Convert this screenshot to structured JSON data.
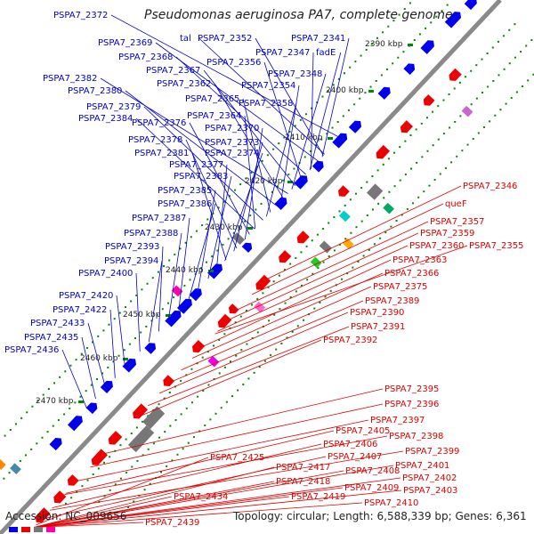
{
  "title": "Pseudomonas aeruginosa PA7, complete genome",
  "footer": {
    "accession": "Accession: NC_009656",
    "summary": "Topology: circular; Length: 6,588,339 bp; Genes: 6,361"
  },
  "colors": {
    "forward_label": "#0000cc",
    "reverse_label": "#dd0000",
    "forward_feature": "#0000ee",
    "reverse_feature": "#ee0000",
    "backbone": "#8a8a8a",
    "tick": "#008800"
  },
  "ticks": [
    {
      "text": "2390 kbp"
    },
    {
      "text": "2400 kbp"
    },
    {
      "text": "2410 kbp"
    },
    {
      "text": "2420 kbp"
    },
    {
      "text": "2430 kbp"
    },
    {
      "text": "2440 kbp"
    },
    {
      "text": "2450 kbp"
    },
    {
      "text": "2460 kbp"
    },
    {
      "text": "2470 kbp"
    }
  ],
  "forward_labels": [
    {
      "text": "PSPA7_2372"
    },
    {
      "text": "tal"
    },
    {
      "text": "PSPA7_2352"
    },
    {
      "text": "PSPA7_2341"
    },
    {
      "text": "PSPA7_2369"
    },
    {
      "text": "PSPA7_2347"
    },
    {
      "text": "fadE"
    },
    {
      "text": "PSPA7_2368"
    },
    {
      "text": "PSPA7_2356"
    },
    {
      "text": "PSPA7_2367"
    },
    {
      "text": "PSPA7_2348"
    },
    {
      "text": "PSPA7_2382"
    },
    {
      "text": "PSPA7_2362"
    },
    {
      "text": "PSPA7_2354"
    },
    {
      "text": "PSPA7_2380"
    },
    {
      "text": "PSPA7_2365"
    },
    {
      "text": "PSPA7_2358"
    },
    {
      "text": "PSPA7_2379"
    },
    {
      "text": "PSPA7_2384"
    },
    {
      "text": "PSPA7_2364"
    },
    {
      "text": "PSPA7_2376"
    },
    {
      "text": "PSPA7_2370"
    },
    {
      "text": "PSPA7_2378"
    },
    {
      "text": "PSPA7_2373"
    },
    {
      "text": "PSPA7_2381"
    },
    {
      "text": "PSPA7_2374"
    },
    {
      "text": "PSPA7_2377"
    },
    {
      "text": "PSPA7_2383"
    },
    {
      "text": "PSPA7_2385"
    },
    {
      "text": "PSPA7_2386"
    },
    {
      "text": "PSPA7_2387"
    },
    {
      "text": "PSPA7_2388"
    },
    {
      "text": "PSPA7_2393"
    },
    {
      "text": "PSPA7_2394"
    },
    {
      "text": "PSPA7_2400"
    },
    {
      "text": "PSPA7_2420"
    },
    {
      "text": "PSPA7_2422"
    },
    {
      "text": "PSPA7_2433"
    },
    {
      "text": "PSPA7_2435"
    },
    {
      "text": "PSPA7_2436"
    }
  ],
  "reverse_labels": [
    {
      "text": "PSPA7_2346"
    },
    {
      "text": "queF"
    },
    {
      "text": "PSPA7_2357"
    },
    {
      "text": "PSPA7_2359"
    },
    {
      "text": "PSPA7_2360"
    },
    {
      "text": "PSPA7_2355"
    },
    {
      "text": "PSPA7_2363"
    },
    {
      "text": "PSPA7_2366"
    },
    {
      "text": "PSPA7_2375"
    },
    {
      "text": "PSPA7_2389"
    },
    {
      "text": "PSPA7_2390"
    },
    {
      "text": "PSPA7_2391"
    },
    {
      "text": "PSPA7_2392"
    },
    {
      "text": "PSPA7_2395"
    },
    {
      "text": "PSPA7_2396"
    },
    {
      "text": "PSPA7_2397"
    },
    {
      "text": "PSPA7_2398"
    },
    {
      "text": "PSPA7_2405"
    },
    {
      "text": "PSPA7_2399"
    },
    {
      "text": "PSPA7_2406"
    },
    {
      "text": "PSPA7_2407"
    },
    {
      "text": "PSPA7_2401"
    },
    {
      "text": "PSPA7_2425"
    },
    {
      "text": "PSPA7_2408"
    },
    {
      "text": "PSPA7_2417"
    },
    {
      "text": "PSPA7_2402"
    },
    {
      "text": "PSPA7_2418"
    },
    {
      "text": "PSPA7_2409"
    },
    {
      "text": "PSPA7_2403"
    },
    {
      "text": "PSPA7_2419"
    },
    {
      "text": "PSPA7_2410"
    },
    {
      "text": "PSPA7_2434"
    },
    {
      "text": "PSPA7_2439"
    }
  ]
}
